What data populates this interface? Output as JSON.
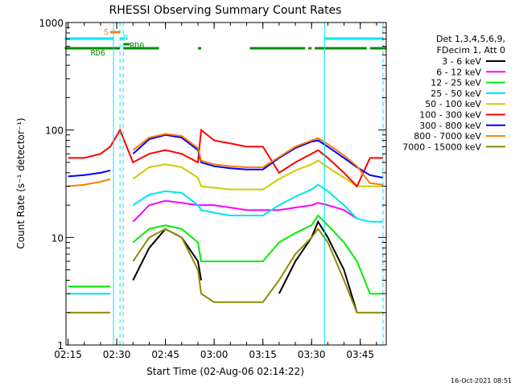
{
  "chart_data": {
    "type": "line",
    "title": "RHESSI Observing Summary Count Rates",
    "xlabel": "Start Time (02-Aug-06 02:14:22)",
    "ylabel": "Count Rate (s⁻¹ detector⁻¹)",
    "yscale": "log",
    "ylim": [
      1,
      1000
    ],
    "xlim": [
      "02:14:22",
      "03:53:00"
    ],
    "x_ticks": [
      "02:15",
      "02:30",
      "02:45",
      "03:00",
      "03:15",
      "03:30",
      "03:45"
    ],
    "y_ticks": [
      "1",
      "10",
      "100",
      "1000"
    ],
    "timestamp": "16-Oct-2021 08:51",
    "legend_header": [
      "Det 1,3,4,5,6,9,",
      "FDecim 1, Att 0"
    ],
    "flags": [
      {
        "label": "S",
        "color": "#ff7f00",
        "segments": [
          [
            "02:28",
            "02:31"
          ]
        ]
      },
      {
        "label": "N",
        "color": "#00e5ee",
        "segments": [
          [
            "02:14",
            "02:29"
          ],
          [
            "02:31",
            "02:32"
          ],
          [
            "03:34",
            "03:52"
          ]
        ]
      },
      {
        "label": "RD0",
        "color": "#008b00",
        "segments": [
          [
            "02:32",
            "02:34"
          ]
        ]
      },
      {
        "label": "RD6",
        "color": "#008b00",
        "segments": [
          [
            "02:14",
            "02:31"
          ],
          [
            "02:32",
            "02:43"
          ],
          [
            "02:55",
            "02:56"
          ],
          [
            "03:11",
            "03:28"
          ],
          [
            "03:29",
            "03:30"
          ],
          [
            "03:31",
            "03:47"
          ],
          [
            "03:48",
            "03:53"
          ]
        ]
      }
    ],
    "vlines": [
      {
        "time": "02:29",
        "color": "#00e5ee",
        "style": "solid"
      },
      {
        "time": "02:31",
        "color": "#00e5ee",
        "style": "dashed"
      },
      {
        "time": "02:32",
        "color": "#00e5ee",
        "style": "dashed"
      },
      {
        "time": "03:34",
        "color": "#00e5ee",
        "style": "solid"
      },
      {
        "time": "03:52",
        "color": "#00e5ee",
        "style": "dashed"
      }
    ],
    "times": [
      "02:15",
      "02:20",
      "02:25",
      "02:28",
      "02:31",
      "02:35",
      "02:40",
      "02:45",
      "02:50",
      "02:55",
      "02:56",
      "03:00",
      "03:05",
      "03:10",
      "03:15",
      "03:20",
      "03:25",
      "03:30",
      "03:32",
      "03:35",
      "03:40",
      "03:44",
      "03:48",
      "03:52"
    ],
    "series": [
      {
        "name": "3 - 6 keV",
        "color": "#000000",
        "values": [
          null,
          null,
          null,
          null,
          null,
          4,
          8,
          12,
          10,
          6,
          4,
          null,
          null,
          null,
          null,
          3,
          6,
          10,
          14,
          10,
          5,
          2,
          null,
          null
        ]
      },
      {
        "name": "6 - 12 keV",
        "color": "#ff00ff",
        "values": [
          null,
          null,
          null,
          null,
          null,
          14,
          20,
          22,
          21,
          20,
          20,
          20,
          19,
          18,
          18,
          18,
          19,
          20,
          21,
          20,
          18,
          15,
          null,
          null
        ]
      },
      {
        "name": "12 - 25 keV",
        "color": "#00ee00",
        "values": [
          3.5,
          3.5,
          3.5,
          3.5,
          null,
          9,
          12,
          13,
          12,
          9,
          6,
          6,
          6,
          6,
          6,
          9,
          11,
          13,
          16,
          13,
          9,
          6,
          3,
          3
        ]
      },
      {
        "name": "25 - 50 keV",
        "color": "#00e5ee",
        "values": [
          3,
          3,
          3,
          3,
          null,
          20,
          25,
          27,
          26,
          20,
          18,
          17,
          16,
          16,
          16,
          20,
          24,
          28,
          31,
          27,
          20,
          15,
          14,
          14
        ]
      },
      {
        "name": "50 - 100 keV",
        "color": "#cdcd00",
        "values": [
          null,
          null,
          null,
          null,
          null,
          35,
          45,
          48,
          45,
          36,
          30,
          29,
          28,
          28,
          28,
          35,
          42,
          48,
          52,
          45,
          36,
          30,
          30,
          30
        ]
      },
      {
        "name": "100 - 300 keV",
        "color": "#ff0000",
        "values": [
          55,
          55,
          60,
          70,
          100,
          50,
          60,
          65,
          60,
          50,
          100,
          80,
          75,
          70,
          70,
          40,
          50,
          60,
          65,
          55,
          40,
          30,
          55,
          55
        ]
      },
      {
        "name": "300 - 800 keV",
        "color": "#0000ff",
        "values": [
          37,
          38,
          40,
          42,
          null,
          60,
          82,
          90,
          85,
          65,
          50,
          46,
          44,
          43,
          43,
          55,
          68,
          78,
          80,
          70,
          55,
          45,
          38,
          36
        ]
      },
      {
        "name": "800 - 7000 keV",
        "color": "#ff7f00",
        "values": [
          30,
          31,
          33,
          35,
          null,
          65,
          85,
          92,
          88,
          68,
          52,
          48,
          46,
          45,
          45,
          56,
          70,
          80,
          84,
          74,
          58,
          46,
          32,
          31
        ]
      },
      {
        "name": "7000 - 15000 keV",
        "color": "#8b8b00",
        "values": [
          2,
          2,
          2,
          2,
          null,
          6,
          10,
          12,
          10,
          5,
          3,
          2.5,
          2.5,
          2.5,
          2.5,
          4,
          7,
          10,
          12,
          9,
          4,
          2,
          2,
          2
        ]
      }
    ]
  }
}
